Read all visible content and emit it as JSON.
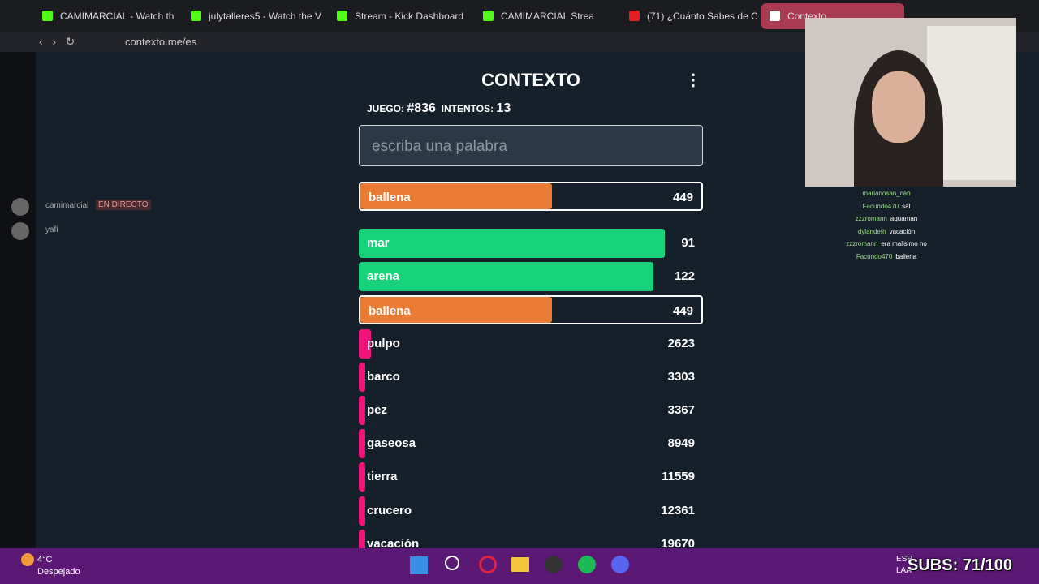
{
  "browser": {
    "tabs": [
      "CAMIMARCIAL - Watch th",
      "julytalleres5 - Watch the V",
      "Stream - Kick Dashboard",
      "CAMIMARCIAL Strea",
      "(71) ¿Cuánto Sabes de C",
      "Contexto"
    ],
    "url": "contexto.me/es"
  },
  "sidebar": {
    "channels": [
      {
        "name": "camimarcial",
        "status": "EN DIRECTO"
      },
      {
        "name": "yafi"
      }
    ]
  },
  "game": {
    "title": "CONTEXTO",
    "game_label": "JUEGO:",
    "game_number": "#836",
    "attempts_label": "INTENTOS:",
    "attempts": 13,
    "placeholder": "escriba una palabra",
    "last_guess": {
      "word": "ballena",
      "rank": 449
    },
    "guesses": [
      {
        "word": "mar",
        "rank": 91
      },
      {
        "word": "arena",
        "rank": 122
      },
      {
        "word": "ballena",
        "rank": 449
      },
      {
        "word": "pulpo",
        "rank": 2623
      },
      {
        "word": "barco",
        "rank": 3303
      },
      {
        "word": "pez",
        "rank": 3367
      },
      {
        "word": "gaseosa",
        "rank": 8949
      },
      {
        "word": "tierra",
        "rank": 11559
      },
      {
        "word": "crucero",
        "rank": 12361
      },
      {
        "word": "vacación",
        "rank": 19670
      }
    ]
  },
  "chat": [
    {
      "user": "marianosan_cab"
    },
    {
      "user": "Facundo470",
      "message": "sal"
    },
    {
      "user": "zzzromann",
      "message": "aquaman"
    },
    {
      "user": "dylandeth",
      "message": "vacación"
    },
    {
      "user": "zzzromann",
      "message": "era malisimo no"
    },
    {
      "user": "Facundo470",
      "message": "ballena"
    }
  ],
  "taskbar": {
    "temperature": "4°C",
    "weather": "Despejado",
    "language": [
      "ESP",
      "LAA"
    ]
  },
  "overlay": {
    "subs": "SUBS: 71/100"
  }
}
